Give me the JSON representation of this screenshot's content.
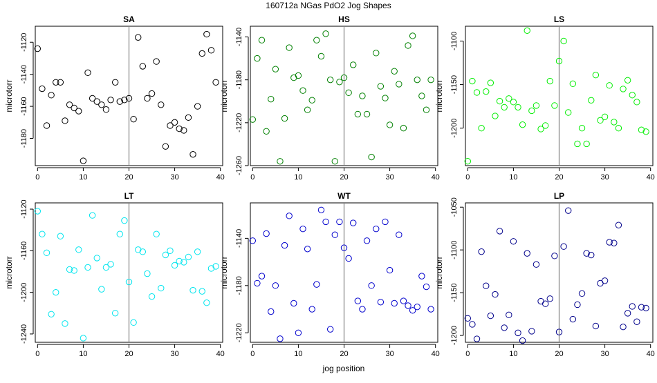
{
  "figure": {
    "title": "160712a    NGas PdO2 Jog Shapes",
    "xlabel": "jog position"
  },
  "chart_data": [
    {
      "type": "scatter",
      "title": "SA",
      "ylabel": "microtorr",
      "color": "#000000",
      "xlim": [
        -0.5,
        40.5
      ],
      "ylim": [
        -1197,
        -1110
      ],
      "vline": 20,
      "xticks": [
        0,
        10,
        20,
        30,
        40
      ],
      "yticks": [
        -1120,
        -1140,
        -1160,
        -1180
      ],
      "x": [
        0,
        1,
        2,
        3,
        4,
        5,
        6,
        7,
        8,
        9,
        10,
        11,
        12,
        13,
        14,
        15,
        16,
        17,
        18,
        19,
        20,
        21,
        22,
        23,
        24,
        25,
        26,
        27,
        28,
        29,
        30,
        31,
        32,
        33,
        34,
        35,
        36,
        37,
        38,
        39
      ],
      "y": [
        -1124,
        -1149,
        -1172,
        -1153,
        -1145,
        -1145,
        -1169,
        -1159,
        -1161,
        -1163,
        -1194,
        -1139,
        -1155,
        -1157,
        -1159,
        -1162,
        -1156,
        -1145,
        -1157,
        -1156,
        -1155,
        -1168,
        -1117,
        -1135,
        -1155,
        -1152,
        -1132,
        -1159,
        -1185,
        -1172,
        -1170,
        -1174,
        -1175,
        -1167,
        -1190,
        -1160,
        -1127,
        -1115,
        -1125,
        -1145
      ]
    },
    {
      "type": "scatter",
      "title": "HS",
      "ylabel": "microtorr",
      "color": "#008000",
      "xlim": [
        -0.5,
        40.5
      ],
      "ylim": [
        -1260,
        -1130
      ],
      "vline": 20,
      "xticks": [
        0,
        10,
        20,
        30,
        40
      ],
      "yticks": [
        -1140,
        -1180,
        -1220,
        -1260
      ],
      "x": [
        0,
        1,
        2,
        3,
        4,
        5,
        6,
        7,
        8,
        9,
        10,
        11,
        12,
        13,
        14,
        15,
        16,
        17,
        18,
        19,
        20,
        21,
        22,
        23,
        24,
        25,
        26,
        27,
        28,
        29,
        30,
        31,
        32,
        33,
        34,
        35,
        36,
        37,
        38,
        39
      ],
      "y": [
        -1217,
        -1160,
        -1143,
        -1228,
        -1198,
        -1170,
        -1256,
        -1216,
        -1150,
        -1178,
        -1176,
        -1190,
        -1208,
        -1199,
        -1143,
        -1158,
        -1137,
        -1180,
        -1256,
        -1182,
        -1178,
        -1192,
        -1166,
        -1212,
        -1195,
        -1212,
        -1252,
        -1155,
        -1186,
        -1197,
        -1222,
        -1172,
        -1184,
        -1225,
        -1148,
        -1139,
        -1180,
        -1195,
        -1208,
        -1180
      ]
    },
    {
      "type": "scatter",
      "title": "LS",
      "ylabel": "microtorr",
      "color": "#00ee00",
      "xlim": [
        -0.5,
        40.5
      ],
      "ylim": [
        -1243,
        -1083
      ],
      "vline": 20,
      "xticks": [
        0,
        10,
        20,
        30,
        40
      ],
      "yticks": [
        -1100,
        -1150,
        -1200
      ],
      "x": [
        0,
        1,
        2,
        3,
        4,
        5,
        6,
        7,
        8,
        9,
        10,
        11,
        12,
        13,
        14,
        15,
        16,
        17,
        18,
        19,
        20,
        21,
        22,
        23,
        24,
        25,
        26,
        27,
        28,
        29,
        30,
        31,
        32,
        33,
        34,
        35,
        36,
        37,
        38,
        39
      ],
      "y": [
        -1238,
        -1146,
        -1159,
        -1200,
        -1158,
        -1148,
        -1186,
        -1169,
        -1176,
        -1166,
        -1170,
        -1176,
        -1196,
        -1088,
        -1180,
        -1174,
        -1201,
        -1197,
        -1146,
        -1174,
        -1123,
        -1100,
        -1182,
        -1149,
        -1218,
        -1200,
        -1218,
        -1168,
        -1139,
        -1191,
        -1187,
        -1151,
        -1193,
        -1200,
        -1155,
        -1145,
        -1162,
        -1170,
        -1202,
        -1204
      ]
    },
    {
      "type": "scatter",
      "title": "LT",
      "ylabel": "microtorr",
      "color": "#00e5ee",
      "xlim": [
        -0.5,
        40.5
      ],
      "ylim": [
        -1248,
        -1114
      ],
      "vline": 20,
      "xticks": [
        0,
        10,
        20,
        30,
        40
      ],
      "yticks": [
        -1120,
        -1160,
        -1200,
        -1240
      ],
      "x": [
        0,
        1,
        2,
        3,
        4,
        5,
        6,
        7,
        8,
        9,
        10,
        11,
        12,
        13,
        14,
        15,
        16,
        17,
        18,
        19,
        20,
        21,
        22,
        23,
        24,
        25,
        26,
        27,
        28,
        29,
        30,
        31,
        32,
        33,
        34,
        35,
        36,
        37,
        38,
        39
      ],
      "y": [
        -1122,
        -1144,
        -1162,
        -1221,
        -1200,
        -1146,
        -1230,
        -1178,
        -1179,
        -1159,
        -1244,
        -1176,
        -1126,
        -1167,
        -1197,
        -1176,
        -1173,
        -1220,
        -1144,
        -1131,
        -1190,
        -1229,
        -1159,
        -1161,
        -1182,
        -1204,
        -1144,
        -1196,
        -1164,
        -1160,
        -1174,
        -1170,
        -1171,
        -1166,
        -1198,
        -1161,
        -1199,
        -1210,
        -1177,
        -1175
      ]
    },
    {
      "type": "scatter",
      "title": "WT",
      "ylabel": "microtorr",
      "color": "#0000cd",
      "xlim": [
        -0.5,
        40.5
      ],
      "ylim": [
        -1228,
        -1110
      ],
      "vline": 20,
      "xticks": [
        0,
        10,
        20,
        30,
        40
      ],
      "yticks": [
        -1140,
        -1180,
        -1220
      ],
      "x": [
        0,
        1,
        2,
        3,
        4,
        5,
        6,
        7,
        8,
        9,
        10,
        11,
        12,
        13,
        14,
        15,
        16,
        17,
        18,
        19,
        20,
        21,
        22,
        23,
        24,
        25,
        26,
        27,
        28,
        29,
        30,
        31,
        32,
        33,
        34,
        35,
        36,
        37,
        38,
        39
      ],
      "y": [
        -1142,
        -1178,
        -1172,
        -1136,
        -1202,
        -1180,
        -1225,
        -1146,
        -1121,
        -1195,
        -1220,
        -1132,
        -1149,
        -1200,
        -1179,
        -1116,
        -1126,
        -1217,
        -1137,
        -1126,
        -1148,
        -1157,
        -1127,
        -1193,
        -1200,
        -1142,
        -1180,
        -1132,
        -1194,
        -1126,
        -1167,
        -1195,
        -1137,
        -1193,
        -1197,
        -1201,
        -1198,
        -1172,
        -1181,
        -1200
      ]
    },
    {
      "type": "scatter",
      "title": "LP",
      "ylabel": "microtorr",
      "color": "#00008b",
      "xlim": [
        -0.5,
        40.5
      ],
      "ylim": [
        -1208,
        -1045
      ],
      "vline": 20,
      "xticks": [
        0,
        10,
        20,
        30,
        40
      ],
      "yticks": [
        -1050,
        -1100,
        -1150,
        -1200
      ],
      "x": [
        0,
        1,
        2,
        3,
        4,
        5,
        6,
        7,
        8,
        9,
        10,
        11,
        12,
        13,
        14,
        15,
        16,
        17,
        18,
        19,
        20,
        21,
        22,
        23,
        24,
        25,
        26,
        27,
        28,
        29,
        30,
        31,
        32,
        33,
        34,
        35,
        36,
        37,
        38,
        39
      ],
      "y": [
        -1180,
        -1187,
        -1204,
        -1102,
        -1142,
        -1177,
        -1152,
        -1078,
        -1191,
        -1176,
        -1090,
        -1197,
        -1206,
        -1104,
        -1195,
        -1117,
        -1160,
        -1163,
        -1157,
        -1107,
        -1196,
        -1096,
        -1054,
        -1181,
        -1164,
        -1151,
        -1104,
        -1106,
        -1189,
        -1139,
        -1136,
        -1091,
        -1092,
        -1071,
        -1190,
        -1174,
        -1166,
        -1184,
        -1167,
        -1168
      ]
    }
  ]
}
